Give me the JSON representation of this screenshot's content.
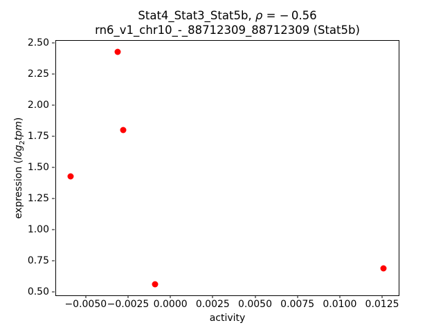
{
  "chart_data": {
    "type": "scatter",
    "title_line1": {
      "prefix": "Stat4_Stat3_Stat5b, ",
      "rho": "ρ",
      "value": " = − 0.56"
    },
    "title_line2": "rn6_v1_chr10_-_88712309_88712309 (Stat5b)",
    "rho": -0.56,
    "xlabel": "activity",
    "ylabel": {
      "prefix": "expression (",
      "log": "log",
      "sub": "2",
      "tpm": "tpm",
      "suffix": ")"
    },
    "marker_color": "#ff0000",
    "axis_color": "#000000",
    "legend": "none",
    "grid": false,
    "points": [
      {
        "x": -0.0031,
        "y": 2.43
      },
      {
        "x": -0.0028,
        "y": 1.8
      },
      {
        "x": -0.0059,
        "y": 1.43
      },
      {
        "x": -0.0009,
        "y": 0.56
      },
      {
        "x": 0.0126,
        "y": 0.69
      }
    ],
    "x_axis": {
      "lim": [
        -0.00679,
        0.01352
      ],
      "ticks": [
        {
          "value": -0.005,
          "label": "−0.0050"
        },
        {
          "value": -0.0025,
          "label": "−0.0025"
        },
        {
          "value": 0.0,
          "label": "0.0000"
        },
        {
          "value": 0.0025,
          "label": "0.0025"
        },
        {
          "value": 0.005,
          "label": "0.0050"
        },
        {
          "value": 0.0075,
          "label": "0.0075"
        },
        {
          "value": 0.01,
          "label": "0.0100"
        },
        {
          "value": 0.0125,
          "label": "0.0125"
        }
      ]
    },
    "y_axis": {
      "lim": [
        0.4665,
        2.5235
      ],
      "ticks": [
        {
          "value": 0.5,
          "label": "0.50"
        },
        {
          "value": 0.75,
          "label": "0.75"
        },
        {
          "value": 1.0,
          "label": "1.00"
        },
        {
          "value": 1.25,
          "label": "1.25"
        },
        {
          "value": 1.5,
          "label": "1.50"
        },
        {
          "value": 1.75,
          "label": "1.75"
        },
        {
          "value": 2.0,
          "label": "2.00"
        },
        {
          "value": 2.25,
          "label": "2.25"
        },
        {
          "value": 2.5,
          "label": "2.50"
        }
      ]
    }
  }
}
